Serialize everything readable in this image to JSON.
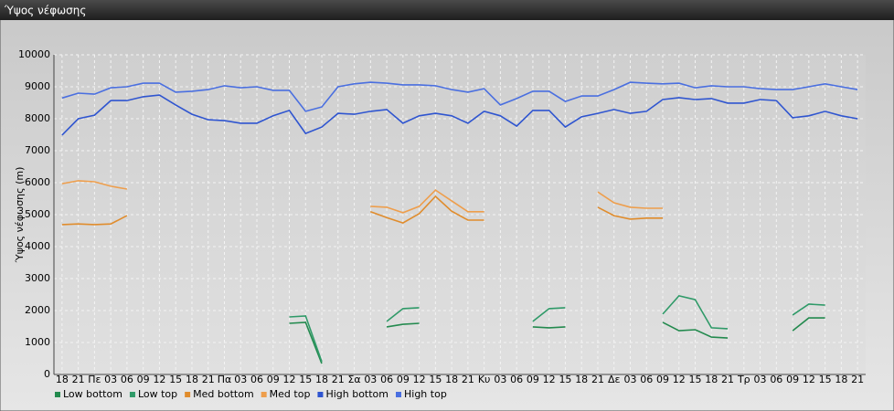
{
  "chart_data": {
    "type": "line",
    "title": "Ύψος νέφωσης",
    "y_label": "Ύψος νέφωσης (m)",
    "categories": [
      "18",
      "21",
      "Πε",
      "03",
      "06",
      "09",
      "12",
      "15",
      "18",
      "21",
      "Πα",
      "03",
      "06",
      "09",
      "12",
      "15",
      "18",
      "21",
      "Σα",
      "03",
      "06",
      "09",
      "12",
      "15",
      "18",
      "21",
      "Κυ",
      "03",
      "06",
      "09",
      "12",
      "15",
      "18",
      "21",
      "Δε",
      "03",
      "06",
      "09",
      "12",
      "15",
      "18",
      "21",
      "Τρ",
      "03",
      "06",
      "09",
      "12",
      "15",
      "18",
      "21"
    ],
    "series": [
      {
        "name": "Low bottom",
        "color": "#238a4e",
        "values": [
          null,
          null,
          null,
          null,
          null,
          null,
          null,
          null,
          null,
          null,
          null,
          null,
          null,
          null,
          1600,
          1630,
          340,
          null,
          null,
          null,
          1490,
          1570,
          1600,
          null,
          null,
          null,
          null,
          null,
          null,
          1490,
          1460,
          1490,
          null,
          null,
          null,
          null,
          null,
          1630,
          1370,
          1400,
          1170,
          1140,
          null,
          null,
          null,
          1370,
          1770,
          1770,
          null,
          null
        ]
      },
      {
        "name": "Low top",
        "color": "#2f9a68",
        "values": [
          null,
          null,
          null,
          null,
          null,
          null,
          null,
          null,
          null,
          null,
          null,
          null,
          null,
          null,
          1800,
          1830,
          400,
          null,
          null,
          null,
          1660,
          2060,
          2090,
          null,
          null,
          null,
          null,
          null,
          null,
          1660,
          2060,
          2090,
          null,
          null,
          null,
          null,
          null,
          1890,
          2460,
          2340,
          1460,
          1430,
          null,
          null,
          null,
          1860,
          2200,
          2170,
          null,
          null
        ]
      },
      {
        "name": "Med bottom",
        "color": "#e08c2c",
        "values": [
          4690,
          4710,
          4690,
          4710,
          4970,
          null,
          null,
          null,
          null,
          null,
          null,
          null,
          null,
          null,
          null,
          null,
          null,
          null,
          null,
          5090,
          4910,
          4740,
          5030,
          5570,
          5110,
          4830,
          4830,
          null,
          null,
          null,
          null,
          null,
          null,
          5230,
          4970,
          4860,
          4890,
          4890,
          null,
          null,
          null,
          null,
          null,
          null,
          null,
          null,
          null,
          null,
          null,
          null
        ]
      },
      {
        "name": "Med top",
        "color": "#ee9e4c",
        "values": [
          5970,
          6060,
          6030,
          5890,
          5800,
          null,
          null,
          null,
          null,
          null,
          null,
          null,
          null,
          null,
          null,
          null,
          null,
          null,
          null,
          5260,
          5230,
          5060,
          5260,
          5770,
          5430,
          5090,
          5090,
          null,
          null,
          null,
          null,
          null,
          null,
          5710,
          5370,
          5230,
          5200,
          5200,
          null,
          null,
          null,
          null,
          null,
          null,
          null,
          null,
          null,
          null,
          null,
          null
        ]
      },
      {
        "name": "High bottom",
        "color": "#2f55d0",
        "values": [
          7490,
          8000,
          8110,
          8570,
          8570,
          8690,
          8740,
          8430,
          8140,
          7970,
          7940,
          7860,
          7860,
          8090,
          8260,
          7540,
          7740,
          8170,
          8140,
          8230,
          8290,
          7860,
          8090,
          8170,
          8090,
          7860,
          8230,
          8090,
          7770,
          8260,
          8260,
          7740,
          8060,
          8170,
          8290,
          8170,
          8230,
          8600,
          8660,
          8600,
          8630,
          8490,
          8490,
          8600,
          8570,
          8030,
          8090,
          8230,
          8090,
          8000
        ]
      },
      {
        "name": "High top",
        "color": "#4a6fe0",
        "values": [
          8650,
          8800,
          8770,
          8970,
          9000,
          9110,
          9110,
          8830,
          8860,
          8910,
          9030,
          8970,
          9000,
          8890,
          8890,
          8230,
          8370,
          9000,
          9090,
          9140,
          9110,
          9060,
          9060,
          9030,
          8910,
          8830,
          8940,
          8430,
          8630,
          8860,
          8860,
          8540,
          8710,
          8710,
          8910,
          9140,
          9110,
          9090,
          9110,
          8970,
          9030,
          9000,
          9000,
          8940,
          8910,
          8910,
          9000,
          9090,
          9000,
          8910
        ]
      }
    ],
    "ylim": [
      0,
      10000
    ],
    "yticks": [
      0,
      1000,
      2000,
      3000,
      4000,
      5000,
      6000,
      7000,
      8000,
      9000,
      10000
    ],
    "grid": true,
    "legend": "bottom-left"
  }
}
